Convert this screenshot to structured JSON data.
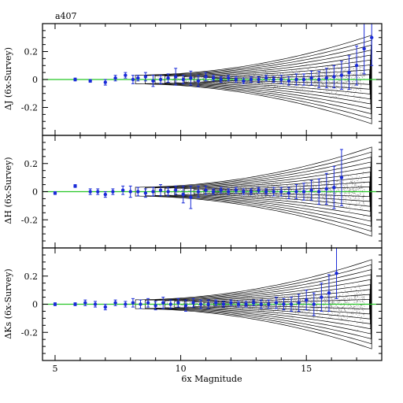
{
  "chart_data": [
    {
      "type": "scatter",
      "title": "a407",
      "ylabel": "ΔJ (6x-Survey)",
      "xlim": [
        4.5,
        18
      ],
      "ylim": [
        -0.4,
        0.4
      ],
      "yticks": [
        -0.2,
        0,
        0.2
      ],
      "reference_line": 0,
      "series": [
        {
          "x": [
            5.8,
            6.4,
            7.0,
            7.4,
            7.8,
            8.1,
            8.3,
            8.6,
            8.9,
            9.2,
            9.5,
            9.8,
            10.1,
            10.4,
            10.7,
            11.0,
            11.3,
            11.6,
            11.9,
            12.2,
            12.5,
            12.8,
            13.1,
            13.4,
            13.7,
            14.0,
            14.3,
            14.6,
            14.9,
            15.2,
            15.5,
            15.8,
            16.1,
            16.4,
            16.7,
            17.0,
            17.3,
            17.6
          ],
          "y": [
            0.0,
            -0.01,
            -0.02,
            0.01,
            0.03,
            0.0,
            0.01,
            0.02,
            -0.01,
            0.0,
            0.01,
            0.02,
            0.0,
            0.01,
            -0.01,
            0.02,
            0.01,
            0.0,
            0.01,
            0.0,
            -0.01,
            0.0,
            0.0,
            0.01,
            0.0,
            0.0,
            -0.01,
            0.0,
            0.0,
            0.01,
            0.0,
            0.01,
            0.02,
            0.03,
            0.05,
            0.1,
            0.22,
            0.3
          ],
          "err": [
            0.01,
            0.01,
            0.02,
            0.02,
            0.02,
            0.03,
            0.02,
            0.03,
            0.04,
            0.03,
            0.03,
            0.06,
            0.03,
            0.05,
            0.04,
            0.03,
            0.02,
            0.02,
            0.02,
            0.02,
            0.02,
            0.02,
            0.02,
            0.02,
            0.02,
            0.03,
            0.03,
            0.04,
            0.04,
            0.05,
            0.06,
            0.07,
            0.08,
            0.1,
            0.12,
            0.14,
            0.18,
            0.2
          ]
        }
      ]
    },
    {
      "type": "scatter",
      "ylabel": "ΔH (6x-Survey)",
      "xlim": [
        4.5,
        18
      ],
      "ylim": [
        -0.4,
        0.4
      ],
      "yticks": [
        -0.2,
        0,
        0.2
      ],
      "reference_line": 0,
      "series": [
        {
          "x": [
            5.0,
            5.8,
            6.4,
            6.7,
            7.0,
            7.3,
            7.7,
            8.0,
            8.3,
            8.6,
            8.9,
            9.2,
            9.5,
            9.8,
            10.1,
            10.4,
            10.7,
            11.0,
            11.3,
            11.6,
            11.9,
            12.2,
            12.5,
            12.8,
            13.1,
            13.4,
            13.7,
            14.0,
            14.3,
            14.6,
            14.9,
            15.2,
            15.5,
            15.8,
            16.1,
            16.4
          ],
          "y": [
            -0.01,
            0.04,
            0.0,
            0.0,
            -0.02,
            0.0,
            0.01,
            0.0,
            0.0,
            -0.01,
            0.0,
            0.01,
            0.0,
            0.01,
            -0.02,
            -0.04,
            0.0,
            0.01,
            0.0,
            0.01,
            0.0,
            0.01,
            0.0,
            0.0,
            0.01,
            0.0,
            0.0,
            0.0,
            -0.01,
            0.0,
            0.0,
            0.01,
            0.0,
            0.02,
            0.03,
            0.1
          ],
          "err": [
            0.01,
            0.01,
            0.02,
            0.02,
            0.02,
            0.02,
            0.03,
            0.04,
            0.03,
            0.03,
            0.03,
            0.04,
            0.03,
            0.03,
            0.06,
            0.08,
            0.04,
            0.03,
            0.02,
            0.02,
            0.02,
            0.02,
            0.02,
            0.02,
            0.02,
            0.02,
            0.03,
            0.03,
            0.04,
            0.05,
            0.06,
            0.07,
            0.09,
            0.11,
            0.15,
            0.2
          ]
        }
      ]
    },
    {
      "type": "scatter",
      "ylabel": "ΔKs (6x-Survey)",
      "xlabel": "6x Magnitude",
      "xlim": [
        4.5,
        18
      ],
      "ylim": [
        -0.4,
        0.4
      ],
      "xticks": [
        5,
        10,
        15
      ],
      "yticks": [
        -0.2,
        0,
        0.2
      ],
      "reference_line": 0,
      "series": [
        {
          "x": [
            5.0,
            5.8,
            6.2,
            6.6,
            7.0,
            7.4,
            7.8,
            8.1,
            8.4,
            8.7,
            9.0,
            9.3,
            9.6,
            9.9,
            10.2,
            10.5,
            10.8,
            11.1,
            11.4,
            11.7,
            12.0,
            12.3,
            12.6,
            12.9,
            13.2,
            13.5,
            13.8,
            14.1,
            14.4,
            14.7,
            15.0,
            15.3,
            15.6,
            15.9,
            16.2
          ],
          "y": [
            0.0,
            0.0,
            0.01,
            0.0,
            -0.02,
            0.01,
            0.0,
            0.01,
            0.0,
            0.01,
            -0.01,
            0.01,
            0.0,
            0.01,
            -0.01,
            0.01,
            0.0,
            0.0,
            0.01,
            0.0,
            0.01,
            0.0,
            0.0,
            0.01,
            0.0,
            0.0,
            0.01,
            0.0,
            0.0,
            0.01,
            0.03,
            0.0,
            0.05,
            0.08,
            0.22
          ],
          "err": [
            0.01,
            0.01,
            0.02,
            0.02,
            0.02,
            0.02,
            0.02,
            0.03,
            0.03,
            0.03,
            0.03,
            0.04,
            0.03,
            0.03,
            0.04,
            0.03,
            0.03,
            0.03,
            0.02,
            0.02,
            0.02,
            0.02,
            0.02,
            0.02,
            0.03,
            0.03,
            0.04,
            0.04,
            0.05,
            0.06,
            0.07,
            0.08,
            0.1,
            0.13,
            0.18
          ]
        }
      ]
    }
  ],
  "colors": {
    "points": "#1a2bd8",
    "zero_line": "#26c626",
    "contour": "#000000",
    "cloud": "#555555"
  }
}
